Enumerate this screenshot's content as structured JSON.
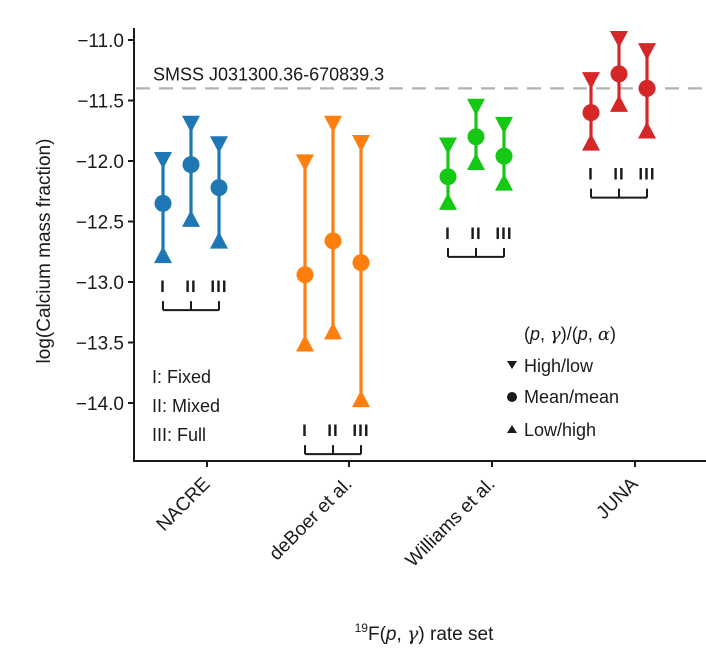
{
  "chart_data": {
    "type": "scatter",
    "title": "",
    "xlabel": "19F(p, γ) rate set",
    "xlabel_parts": {
      "superscript": "19",
      "main": "F(",
      "p": "p",
      "sep": ", ",
      "gamma": "γ",
      "tail": ") rate set"
    },
    "ylabel": "log(Calcium mass fraction)",
    "ylim": [
      -14.5,
      -10.85
    ],
    "yticks": [
      -11.0,
      -11.5,
      -12.0,
      -12.5,
      -13.0,
      -13.5,
      -14.0
    ],
    "ytick_labels": [
      "−11.0",
      "−11.5",
      "−12.0",
      "−12.5",
      "−13.0",
      "−13.5",
      "−14.0"
    ],
    "categories": [
      "NACRE",
      "deBoer et al.",
      "Williams et al.",
      "JUNA"
    ],
    "variants": [
      "I",
      "II",
      "III"
    ],
    "reference_line": {
      "label": "SMSS J031300.36-670839.3",
      "value": -11.4,
      "style": "dashed",
      "color": "#b3b3b3"
    },
    "series": [
      {
        "name": "NACRE",
        "color": "#1f77b4",
        "points": [
          {
            "variant": "I",
            "high_low": -12.0,
            "mean_mean": -12.35,
            "low_high": -12.77
          },
          {
            "variant": "II",
            "high_low": -11.7,
            "mean_mean": -12.03,
            "low_high": -12.47
          },
          {
            "variant": "III",
            "high_low": -11.87,
            "mean_mean": -12.22,
            "low_high": -12.65
          }
        ]
      },
      {
        "name": "deBoer et al.",
        "color": "#ff7f0e",
        "points": [
          {
            "variant": "I",
            "high_low": -12.02,
            "mean_mean": -12.94,
            "low_high": -13.5
          },
          {
            "variant": "II",
            "high_low": -11.7,
            "mean_mean": -12.66,
            "low_high": -13.4
          },
          {
            "variant": "III",
            "high_low": -11.86,
            "mean_mean": -12.84,
            "low_high": -13.96
          }
        ]
      },
      {
        "name": "Williams et al.",
        "color": "#14c814",
        "points": [
          {
            "variant": "I",
            "high_low": -11.88,
            "mean_mean": -12.13,
            "low_high": -12.33
          },
          {
            "variant": "II",
            "high_low": -11.56,
            "mean_mean": -11.8,
            "low_high": -12.0
          },
          {
            "variant": "III",
            "high_low": -11.71,
            "mean_mean": -11.96,
            "low_high": -12.17
          }
        ]
      },
      {
        "name": "JUNA",
        "color": "#d62728",
        "points": [
          {
            "variant": "I",
            "high_low": -11.34,
            "mean_mean": -11.6,
            "low_high": -11.84
          },
          {
            "variant": "II",
            "high_low": -11.0,
            "mean_mean": -11.28,
            "low_high": -11.52
          },
          {
            "variant": "III",
            "high_low": -11.1,
            "mean_mean": -11.4,
            "low_high": -11.74
          }
        ]
      }
    ],
    "variant_legend": [
      "I: Fixed",
      "II: Mixed",
      "III: Full"
    ],
    "marker_legend": {
      "title": "(p, γ)/(p, α)",
      "title_parts": {
        "open": "(",
        "p1": "p",
        "sep1": ", ",
        "gamma": "γ",
        "mid": ")/(",
        "p2": "p",
        "sep2": ", ",
        "alpha": "α",
        "close": ")"
      },
      "entries": [
        {
          "marker": "triangle-down",
          "label": "High/low"
        },
        {
          "marker": "circle",
          "label": "Mean/mean"
        },
        {
          "marker": "triangle-up",
          "label": "Low/high"
        }
      ]
    },
    "legend_position": "bottom-right",
    "grid": false
  }
}
